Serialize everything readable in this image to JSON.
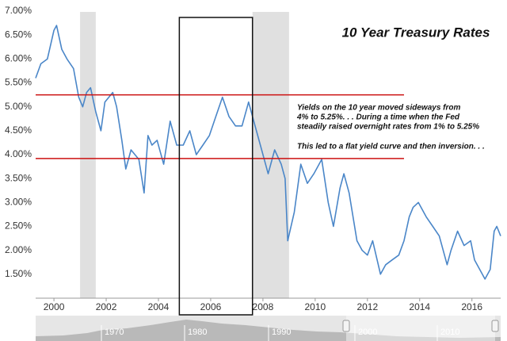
{
  "chart_data": {
    "type": "line",
    "title": "10 Year Treasury Rates",
    "x": [
      1999.3,
      1999.5,
      1999.75,
      2000.0,
      2000.1,
      2000.3,
      2000.5,
      2000.75,
      2000.95,
      2001.1,
      2001.25,
      2001.4,
      2001.6,
      2001.8,
      2001.95,
      2002.25,
      2002.4,
      2002.6,
      2002.75,
      2002.95,
      2003.25,
      2003.45,
      2003.6,
      2003.75,
      2003.95,
      2004.2,
      2004.45,
      2004.7,
      2004.95,
      2005.2,
      2005.45,
      2005.7,
      2005.95,
      2006.2,
      2006.45,
      2006.7,
      2006.95,
      2007.2,
      2007.45,
      2007.7,
      2007.95,
      2008.2,
      2008.45,
      2008.7,
      2008.85,
      2008.95,
      2009.2,
      2009.45,
      2009.7,
      2009.95,
      2010.25,
      2010.5,
      2010.7,
      2010.95,
      2011.1,
      2011.3,
      2011.6,
      2011.8,
      2012.0,
      2012.2,
      2012.5,
      2012.7,
      2012.95,
      2013.2,
      2013.4,
      2013.6,
      2013.75,
      2013.95,
      2014.25,
      2014.5,
      2014.75,
      2015.05,
      2015.2,
      2015.45,
      2015.7,
      2015.95,
      2016.1,
      2016.5,
      2016.7,
      2016.85,
      2016.95,
      2017.1
    ],
    "series": [
      {
        "name": "10 Year Treasury Rate",
        "color": "#4a86c8",
        "values": [
          5.6,
          5.9,
          6.0,
          6.6,
          6.7,
          6.2,
          6.0,
          5.8,
          5.2,
          5.0,
          5.3,
          5.4,
          4.9,
          4.5,
          5.1,
          5.3,
          5.0,
          4.3,
          3.7,
          4.1,
          3.9,
          3.2,
          4.4,
          4.2,
          4.3,
          3.8,
          4.7,
          4.2,
          4.2,
          4.5,
          4.0,
          4.2,
          4.4,
          4.8,
          5.2,
          4.8,
          4.6,
          4.6,
          5.1,
          4.6,
          4.1,
          3.6,
          4.1,
          3.8,
          3.5,
          2.2,
          2.8,
          3.8,
          3.4,
          3.6,
          3.9,
          3.0,
          2.5,
          3.3,
          3.6,
          3.2,
          2.2,
          2.0,
          1.9,
          2.2,
          1.5,
          1.7,
          1.8,
          1.9,
          2.2,
          2.7,
          2.9,
          3.0,
          2.7,
          2.5,
          2.3,
          1.7,
          2.0,
          2.4,
          2.1,
          2.2,
          1.8,
          1.4,
          1.6,
          2.4,
          2.5,
          2.3
        ]
      }
    ],
    "xlim": [
      1999.3,
      2017.1
    ],
    "xticks": [
      2000,
      2002,
      2004,
      2006,
      2008,
      2010,
      2012,
      2014,
      2016
    ],
    "ylim": [
      1.0,
      7.1
    ],
    "yticks": [
      {
        "value": 1.5,
        "label": "1.50%"
      },
      {
        "value": 2.0,
        "label": "2.00%"
      },
      {
        "value": 2.5,
        "label": "2.50%"
      },
      {
        "value": 3.0,
        "label": "3.00%"
      },
      {
        "value": 3.5,
        "label": "3.50%"
      },
      {
        "value": 4.0,
        "label": "4.00%"
      },
      {
        "value": 4.5,
        "label": "4.50%"
      },
      {
        "value": 5.0,
        "label": "5.00%"
      },
      {
        "value": 5.5,
        "label": "5.50%"
      },
      {
        "value": 6.0,
        "label": "6.00%"
      },
      {
        "value": 6.5,
        "label": "6.50%"
      },
      {
        "value": 7.0,
        "label": "7.00%"
      }
    ],
    "grid": false,
    "shaded_ranges": [
      [
        2001.0,
        2001.6
      ],
      [
        2007.6,
        2009.0
      ]
    ],
    "shade_color": "#e0e0e0",
    "reference_lines": [
      {
        "value": 5.25,
        "x": [
          1999.3,
          2013.4
        ],
        "color": "#cc1111"
      },
      {
        "value": 3.92,
        "x": [
          1999.3,
          2013.4
        ],
        "color": "#cc1111"
      }
    ],
    "highlight_box": {
      "x": [
        2004.8,
        2007.6
      ],
      "color": "#111111"
    },
    "annotations": [
      "Yields on the 10 year moved sideways from",
      "4% to 5.25%. . . During a time when the Fed",
      "steadily raised overnight rates from 1% to 5.25%",
      "This led to a flat yield curve and then inversion. . ."
    ],
    "navigator": {
      "labels": [
        "1970",
        "1980",
        "1990",
        "2000",
        "2010"
      ]
    }
  }
}
